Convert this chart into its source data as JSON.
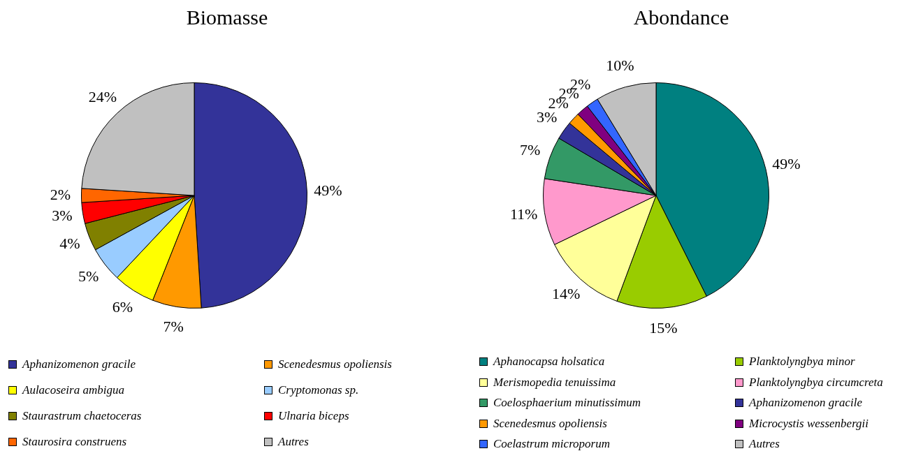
{
  "chart_data": [
    {
      "type": "pie",
      "title": "Biomasse",
      "categories": [
        "Aphanizomenon gracile",
        "Scenedesmus opoliensis",
        "Aulacoseira ambigua",
        "Cryptomonas sp.",
        "Staurastrum chaetoceras",
        "Ulnaria biceps",
        "Staurosira construens",
        "Autres"
      ],
      "values": [
        49,
        7,
        6,
        5,
        4,
        3,
        2,
        24
      ],
      "value_labels": [
        "49%",
        "7%",
        "6%",
        "5%",
        "4%",
        "3%",
        "2%",
        "24%"
      ],
      "colors": [
        "#333399",
        "#ff9900",
        "#ffff00",
        "#99ccff",
        "#808000",
        "#ff0000",
        "#ff6600",
        "#c0c0c0"
      ],
      "legend": "bottom"
    },
    {
      "type": "pie",
      "title": "Abondance",
      "categories": [
        "Aphanocapsa holsatica",
        "Planktolyngbya minor",
        "Merismopedia tenuissima",
        "Planktolyngbya circumcreta",
        "Coelosphaerium minutissimum",
        "Aphanizomenon gracile",
        "Scenedesmus opoliensis",
        "Microcystis wessenbergii",
        "Coelastrum microporum",
        "Autres"
      ],
      "values": [
        49,
        15,
        14,
        11,
        7,
        3,
        2,
        2,
        2,
        10
      ],
      "value_labels": [
        "49%",
        "15%",
        "14%",
        "11%",
        "7%",
        "3%",
        "2%",
        "2%",
        "2%",
        "10%"
      ],
      "colors": [
        "#008080",
        "#99cc00",
        "#ffff99",
        "#ff99cc",
        "#339966",
        "#333399",
        "#ff9900",
        "#800080",
        "#3366ff",
        "#c0c0c0"
      ],
      "legend": "bottom"
    }
  ]
}
